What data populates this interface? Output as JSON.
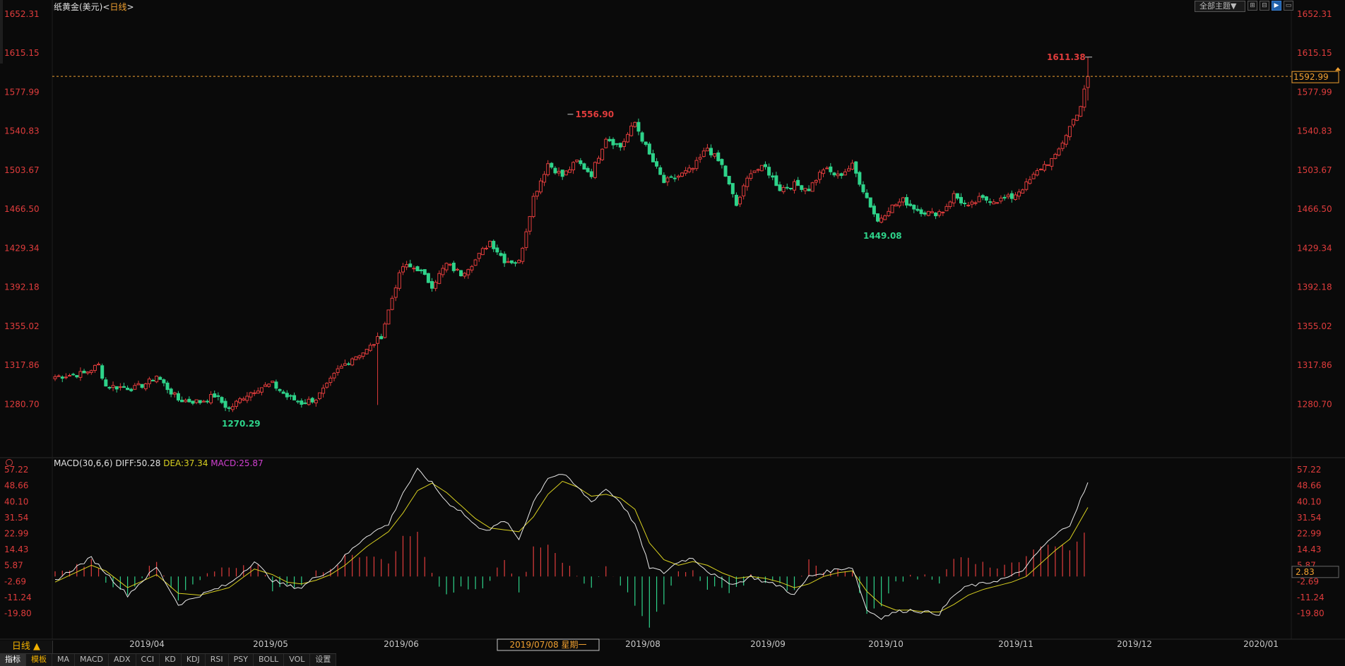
{
  "header": {
    "title": "纸黄金(美元)",
    "separator": "<",
    "timeframe": "日线",
    "closing_bracket": ">"
  },
  "toolbar": {
    "theme_select": "全部主题▼",
    "buttons": [
      {
        "name": "layout-grid-icon",
        "label": "⊞"
      },
      {
        "name": "layout-split-icon",
        "label": "⊟"
      },
      {
        "name": "chart-mode-icon",
        "label": "▶",
        "active": true
      },
      {
        "name": "window-restore-icon",
        "label": "▭"
      }
    ]
  },
  "macd": {
    "name": "MACD(30,6,6)",
    "diff": "DIFF:50.28",
    "dea": "DEA:37.34",
    "macd": "MACD:25.87"
  },
  "colors": {
    "up": "#e03c3c",
    "down": "#2ed38a",
    "axis_text": "#e03c3c",
    "dif_line": "#e8e8e8",
    "dea_line": "#d8d020",
    "macd_label": "#d040d0",
    "accent": "#f0a030"
  },
  "bottom": {
    "period": "日线 ▲",
    "tabs": [
      "指标",
      "模板",
      "MA",
      "MACD",
      "ADX",
      "CCI",
      "KD",
      "KDJ",
      "RSI",
      "PSY",
      "BOLL",
      "VOL",
      "设置"
    ]
  },
  "chart_data": {
    "type": "candlestick",
    "main_axis": {
      "ticks": [
        "1652.31",
        "1615.15",
        "1577.99",
        "1540.83",
        "1503.67",
        "1466.50",
        "1429.34",
        "1392.18",
        "1355.02",
        "1317.86",
        "1280.70"
      ],
      "range": [
        1250.0,
        1652.31
      ]
    },
    "current_price": "1592.99",
    "high_annotation": {
      "label": "1611.38",
      "value": 1611.38
    },
    "annotations": [
      {
        "label": "1556.90",
        "value": 1556.9,
        "color": "up"
      },
      {
        "label": "1270.29",
        "value": 1270.29,
        "color": "down"
      },
      {
        "label": "1449.08",
        "value": 1449.08,
        "color": "down"
      }
    ],
    "x_ticks": [
      "2019/04",
      "2019/05",
      "2019/06",
      "2019/07/08 星期一",
      "2019/08",
      "2019/09",
      "2019/10",
      "2019/11",
      "2019/12",
      "2020/01"
    ],
    "cursor_date": "2019/07/08 星期一",
    "macd_axis": {
      "ticks": [
        "57.22",
        "48.66",
        "40.10",
        "31.54",
        "22.99",
        "14.43",
        "5.87",
        "-2.69",
        "-11.24",
        "-19.80"
      ],
      "range": [
        -26.0,
        57.22
      ],
      "current": "2.83"
    },
    "anchors": [
      [
        0,
        1307
      ],
      [
        8,
        1310
      ],
      [
        12,
        1318
      ],
      [
        14,
        1298
      ],
      [
        22,
        1296
      ],
      [
        26,
        1302
      ],
      [
        28,
        1308
      ],
      [
        31,
        1296
      ],
      [
        34,
        1285
      ],
      [
        40,
        1283
      ],
      [
        44,
        1289
      ],
      [
        48,
        1276
      ],
      [
        52,
        1288
      ],
      [
        56,
        1296
      ],
      [
        60,
        1300
      ],
      [
        64,
        1288
      ],
      [
        68,
        1282
      ],
      [
        72,
        1286
      ],
      [
        75,
        1298
      ],
      [
        78,
        1313
      ],
      [
        82,
        1325
      ],
      [
        86,
        1332
      ],
      [
        90,
        1346
      ],
      [
        94,
        1394
      ],
      [
        96,
        1412
      ],
      [
        100,
        1410
      ],
      [
        104,
        1394
      ],
      [
        108,
        1414
      ],
      [
        112,
        1405
      ],
      [
        116,
        1418
      ],
      [
        120,
        1436
      ],
      [
        124,
        1418
      ],
      [
        128,
        1416
      ],
      [
        132,
        1478
      ],
      [
        136,
        1510
      ],
      [
        140,
        1498
      ],
      [
        144,
        1512
      ],
      [
        148,
        1500
      ],
      [
        152,
        1535
      ],
      [
        156,
        1526
      ],
      [
        160,
        1549
      ],
      [
        164,
        1518
      ],
      [
        168,
        1492
      ],
      [
        172,
        1498
      ],
      [
        176,
        1505
      ],
      [
        180,
        1525
      ],
      [
        184,
        1508
      ],
      [
        188,
        1470
      ],
      [
        192,
        1503
      ],
      [
        196,
        1506
      ],
      [
        200,
        1486
      ],
      [
        204,
        1490
      ],
      [
        208,
        1486
      ],
      [
        212,
        1505
      ],
      [
        216,
        1498
      ],
      [
        220,
        1508
      ],
      [
        223,
        1485
      ],
      [
        227,
        1455
      ],
      [
        230,
        1467
      ],
      [
        234,
        1475
      ],
      [
        238,
        1466
      ],
      [
        242,
        1462
      ],
      [
        245,
        1465
      ],
      [
        248,
        1480
      ],
      [
        252,
        1468
      ],
      [
        255,
        1476
      ],
      [
        260,
        1475
      ],
      [
        264,
        1478
      ],
      [
        268,
        1490
      ],
      [
        272,
        1506
      ],
      [
        276,
        1516
      ],
      [
        280,
        1545
      ],
      [
        283,
        1565
      ],
      [
        285,
        1593
      ]
    ],
    "dif_anchors": [
      [
        0,
        -2
      ],
      [
        10,
        10
      ],
      [
        14,
        2
      ],
      [
        20,
        -10
      ],
      [
        28,
        5
      ],
      [
        34,
        -15
      ],
      [
        40,
        -10
      ],
      [
        48,
        -4
      ],
      [
        55,
        8
      ],
      [
        60,
        -2
      ],
      [
        64,
        -5
      ],
      [
        68,
        -6
      ],
      [
        72,
        0
      ],
      [
        76,
        3
      ],
      [
        80,
        11
      ],
      [
        86,
        22
      ],
      [
        92,
        28
      ],
      [
        96,
        45
      ],
      [
        100,
        57
      ],
      [
        104,
        50
      ],
      [
        108,
        40
      ],
      [
        112,
        35
      ],
      [
        116,
        27
      ],
      [
        120,
        25
      ],
      [
        124,
        30
      ],
      [
        128,
        20
      ],
      [
        132,
        40
      ],
      [
        136,
        53
      ],
      [
        140,
        55
      ],
      [
        144,
        48
      ],
      [
        148,
        40
      ],
      [
        152,
        47
      ],
      [
        156,
        40
      ],
      [
        160,
        28
      ],
      [
        164,
        5
      ],
      [
        168,
        2
      ],
      [
        172,
        8
      ],
      [
        176,
        10
      ],
      [
        180,
        3
      ],
      [
        184,
        -2
      ],
      [
        188,
        -4
      ],
      [
        192,
        0
      ],
      [
        196,
        -3
      ],
      [
        200,
        -5
      ],
      [
        204,
        -10
      ],
      [
        208,
        0
      ],
      [
        212,
        2
      ],
      [
        216,
        4
      ],
      [
        220,
        5
      ],
      [
        224,
        -18
      ],
      [
        228,
        -22
      ],
      [
        232,
        -19
      ],
      [
        236,
        -18
      ],
      [
        240,
        -19
      ],
      [
        244,
        -20
      ],
      [
        248,
        -10
      ],
      [
        252,
        -5
      ],
      [
        256,
        -4
      ],
      [
        260,
        -2
      ],
      [
        264,
        0
      ],
      [
        268,
        5
      ],
      [
        272,
        15
      ],
      [
        276,
        22
      ],
      [
        280,
        28
      ],
      [
        285,
        50
      ]
    ],
    "dea_anchors": [
      [
        0,
        -3
      ],
      [
        10,
        6
      ],
      [
        14,
        3
      ],
      [
        20,
        -6
      ],
      [
        28,
        1
      ],
      [
        34,
        -9
      ],
      [
        40,
        -10
      ],
      [
        48,
        -6
      ],
      [
        55,
        4
      ],
      [
        60,
        1
      ],
      [
        64,
        -3
      ],
      [
        68,
        -4
      ],
      [
        72,
        -2
      ],
      [
        76,
        1
      ],
      [
        80,
        6
      ],
      [
        86,
        16
      ],
      [
        92,
        24
      ],
      [
        96,
        34
      ],
      [
        100,
        46
      ],
      [
        104,
        50
      ],
      [
        108,
        45
      ],
      [
        112,
        38
      ],
      [
        116,
        31
      ],
      [
        120,
        26
      ],
      [
        124,
        25
      ],
      [
        128,
        24
      ],
      [
        132,
        32
      ],
      [
        136,
        44
      ],
      [
        140,
        51
      ],
      [
        144,
        48
      ],
      [
        148,
        43
      ],
      [
        152,
        44
      ],
      [
        156,
        42
      ],
      [
        160,
        36
      ],
      [
        164,
        18
      ],
      [
        168,
        9
      ],
      [
        172,
        6
      ],
      [
        176,
        8
      ],
      [
        180,
        6
      ],
      [
        184,
        2
      ],
      [
        188,
        -1
      ],
      [
        192,
        0
      ],
      [
        196,
        -1
      ],
      [
        200,
        -3
      ],
      [
        204,
        -6
      ],
      [
        208,
        -4
      ],
      [
        212,
        0
      ],
      [
        216,
        2
      ],
      [
        220,
        3
      ],
      [
        224,
        -8
      ],
      [
        228,
        -15
      ],
      [
        232,
        -18
      ],
      [
        236,
        -18
      ],
      [
        240,
        -19
      ],
      [
        244,
        -19
      ],
      [
        248,
        -15
      ],
      [
        252,
        -10
      ],
      [
        256,
        -7
      ],
      [
        260,
        -5
      ],
      [
        264,
        -3
      ],
      [
        268,
        0
      ],
      [
        272,
        7
      ],
      [
        276,
        14
      ],
      [
        280,
        20
      ],
      [
        285,
        37
      ]
    ]
  }
}
